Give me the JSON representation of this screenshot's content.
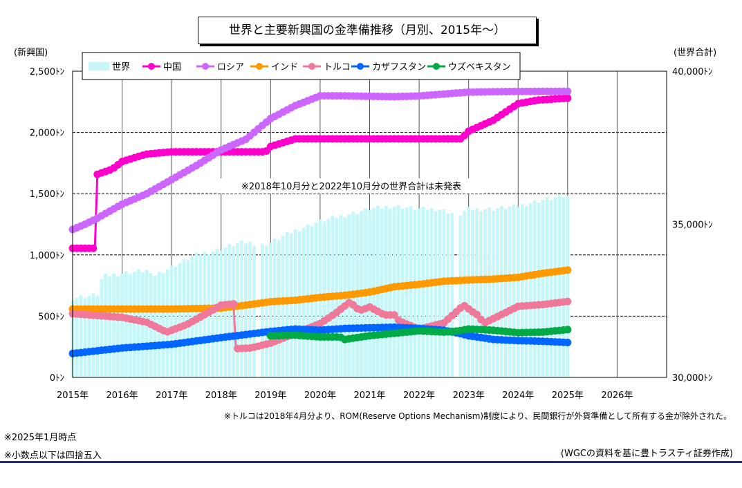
{
  "chart_data": {
    "type": "line+bar",
    "title": "世界と主要新興国の金準備推移（月別、2015年～）",
    "left_axis_label": "(新興国)",
    "right_axis_label": "(世界合計)",
    "left_ticks": [
      "0ﾄﾝ",
      "500ﾄﾝ",
      "1,000ﾄﾝ",
      "1,500ﾄﾝ",
      "2,000ﾄﾝ",
      "2,500ﾄﾝ"
    ],
    "right_ticks": [
      "30,000ﾄﾝ",
      "35,000ﾄﾝ",
      "40,000ﾄﾝ"
    ],
    "x_ticks": [
      "2015年",
      "2016年",
      "2017年",
      "2018年",
      "2019年",
      "2020年",
      "2021年",
      "2022年",
      "2023年",
      "2024年",
      "2025年",
      "2026年"
    ],
    "ylim_left": [
      0,
      2500
    ],
    "ylim_right": [
      30000,
      40000
    ],
    "xlim": [
      2015.0,
      2027.0
    ],
    "annotation_center": "※2018年10月分と2022年10月分の世界合計は未発表",
    "note_turkey": "※トルコは2018年4月分より、ROM(Reserve Options Mechanism)制度により、民間銀行が外貨準備として所有する金が除外された。",
    "note_date": "※2025年1月時点",
    "note_round": "※小数点以下は四捨五入",
    "source": "(WGCの資料を基に豊トラスティ証券作成)",
    "world_bars": {
      "name": "世界",
      "color": "#c5f7f9",
      "points": [
        [
          2015.0,
          32600
        ],
        [
          2015.5,
          32700
        ],
        [
          2015.6,
          33300
        ],
        [
          2016.0,
          33400
        ],
        [
          2016.5,
          33500
        ],
        [
          2016.6,
          33300
        ],
        [
          2017.0,
          33600
        ],
        [
          2017.5,
          34000
        ],
        [
          2018.0,
          34200
        ],
        [
          2018.4,
          34400
        ],
        [
          2018.6,
          34400
        ],
        [
          2018.8,
          34300
        ],
        [
          2019.0,
          34400
        ],
        [
          2019.5,
          34800
        ],
        [
          2020.0,
          35100
        ],
        [
          2020.5,
          35300
        ],
        [
          2021.0,
          35500
        ],
        [
          2021.5,
          35600
        ],
        [
          2022.0,
          35500
        ],
        [
          2022.4,
          35500
        ],
        [
          2022.6,
          35400
        ],
        [
          2022.8,
          35300
        ],
        [
          2023.0,
          35500
        ],
        [
          2023.5,
          35500
        ],
        [
          2024.0,
          35600
        ],
        [
          2024.5,
          35800
        ],
        [
          2024.9,
          35900
        ],
        [
          2025.0,
          35900
        ]
      ]
    },
    "series": [
      {
        "name": "中国",
        "color": "#ff00cc",
        "points": [
          [
            2015.0,
            1054
          ],
          [
            2015.45,
            1054
          ],
          [
            2015.5,
            1658
          ],
          [
            2015.8,
            1700
          ],
          [
            2016.0,
            1762
          ],
          [
            2016.3,
            1800
          ],
          [
            2016.5,
            1823
          ],
          [
            2017.0,
            1842
          ],
          [
            2018.0,
            1842
          ],
          [
            2018.9,
            1842
          ],
          [
            2019.0,
            1885
          ],
          [
            2019.5,
            1948
          ],
          [
            2020.0,
            1948
          ],
          [
            2021.0,
            1948
          ],
          [
            2022.0,
            1948
          ],
          [
            2022.85,
            1948
          ],
          [
            2023.0,
            2010
          ],
          [
            2023.5,
            2100
          ],
          [
            2024.0,
            2235
          ],
          [
            2024.4,
            2264
          ],
          [
            2025.0,
            2280
          ]
        ]
      },
      {
        "name": "ロシア",
        "color": "#cc66ff",
        "points": [
          [
            2015.0,
            1208
          ],
          [
            2015.25,
            1250
          ],
          [
            2015.5,
            1300
          ],
          [
            2016.0,
            1414
          ],
          [
            2016.5,
            1500
          ],
          [
            2017.0,
            1615
          ],
          [
            2017.5,
            1730
          ],
          [
            2018.0,
            1857
          ],
          [
            2018.5,
            1944
          ],
          [
            2019.0,
            2113
          ],
          [
            2019.5,
            2219
          ],
          [
            2020.0,
            2299
          ],
          [
            2020.5,
            2299
          ],
          [
            2021.0,
            2295
          ],
          [
            2021.5,
            2292
          ],
          [
            2022.0,
            2298
          ],
          [
            2023.0,
            2329
          ],
          [
            2024.0,
            2335
          ],
          [
            2025.0,
            2336
          ]
        ]
      },
      {
        "name": "インド",
        "color": "#ff9900",
        "points": [
          [
            2015.0,
            558
          ],
          [
            2016.0,
            558
          ],
          [
            2017.0,
            558
          ],
          [
            2018.0,
            566
          ],
          [
            2018.5,
            590
          ],
          [
            2019.0,
            618
          ],
          [
            2019.5,
            630
          ],
          [
            2020.0,
            653
          ],
          [
            2020.5,
            670
          ],
          [
            2021.0,
            696
          ],
          [
            2021.5,
            740
          ],
          [
            2022.0,
            760
          ],
          [
            2022.5,
            785
          ],
          [
            2023.0,
            795
          ],
          [
            2023.5,
            803
          ],
          [
            2024.0,
            817
          ],
          [
            2024.5,
            850
          ],
          [
            2025.0,
            876
          ]
        ]
      },
      {
        "name": "トルコ",
        "color": "#f07898",
        "points": [
          [
            2015.0,
            520
          ],
          [
            2015.5,
            505
          ],
          [
            2016.0,
            490
          ],
          [
            2016.5,
            450
          ],
          [
            2016.9,
            370
          ],
          [
            2017.3,
            430
          ],
          [
            2017.7,
            520
          ],
          [
            2018.0,
            590
          ],
          [
            2018.25,
            600
          ],
          [
            2018.3,
            235
          ],
          [
            2018.6,
            240
          ],
          [
            2019.0,
            280
          ],
          [
            2019.5,
            360
          ],
          [
            2020.0,
            440
          ],
          [
            2020.3,
            520
          ],
          [
            2020.6,
            615
          ],
          [
            2020.8,
            545
          ],
          [
            2021.0,
            575
          ],
          [
            2021.3,
            510
          ],
          [
            2021.5,
            510
          ],
          [
            2021.6,
            460
          ],
          [
            2022.0,
            394
          ],
          [
            2022.5,
            445
          ],
          [
            2022.9,
            590
          ],
          [
            2023.1,
            530
          ],
          [
            2023.2,
            505
          ],
          [
            2023.3,
            440
          ],
          [
            2023.6,
            500
          ],
          [
            2024.0,
            580
          ],
          [
            2024.5,
            595
          ],
          [
            2025.0,
            620
          ]
        ]
      },
      {
        "name": "カザフスタン",
        "color": "#0066ff",
        "points": [
          [
            2015.0,
            195
          ],
          [
            2016.0,
            240
          ],
          [
            2017.0,
            270
          ],
          [
            2018.0,
            325
          ],
          [
            2019.0,
            375
          ],
          [
            2019.5,
            395
          ],
          [
            2020.0,
            385
          ],
          [
            2020.5,
            400
          ],
          [
            2021.0,
            405
          ],
          [
            2021.5,
            410
          ],
          [
            2022.0,
            400
          ],
          [
            2022.5,
            385
          ],
          [
            2022.8,
            360
          ],
          [
            2023.0,
            340
          ],
          [
            2023.5,
            310
          ],
          [
            2024.0,
            300
          ],
          [
            2024.5,
            295
          ],
          [
            2025.0,
            285
          ]
        ]
      },
      {
        "name": "ウズベキスタン",
        "color": "#00aa44",
        "points": [
          [
            2019.0,
            340
          ],
          [
            2019.5,
            345
          ],
          [
            2020.0,
            330
          ],
          [
            2020.4,
            330
          ],
          [
            2020.5,
            310
          ],
          [
            2021.0,
            340
          ],
          [
            2021.5,
            360
          ],
          [
            2022.0,
            380
          ],
          [
            2022.5,
            370
          ],
          [
            2022.8,
            380
          ],
          [
            2023.0,
            395
          ],
          [
            2023.5,
            385
          ],
          [
            2024.0,
            365
          ],
          [
            2024.5,
            370
          ],
          [
            2025.0,
            390
          ]
        ]
      }
    ]
  }
}
